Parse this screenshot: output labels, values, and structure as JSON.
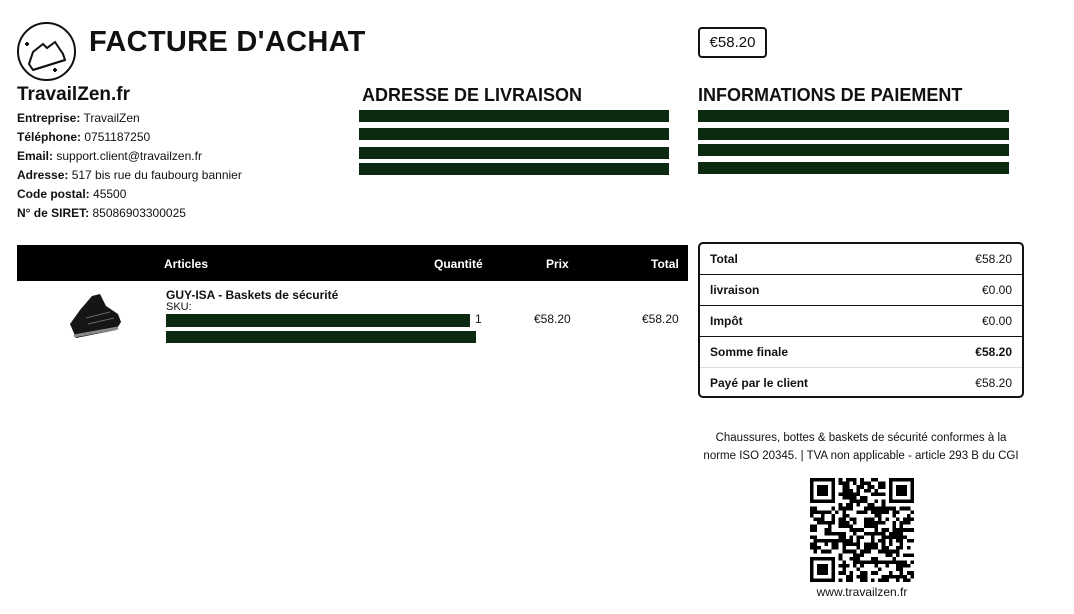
{
  "header": {
    "title": "FACTURE D'ACHAT",
    "amount": "€58.20",
    "logo_icon": "sneaker-icon"
  },
  "company": {
    "name": "TravailZen.fr",
    "fields": [
      {
        "label": "Entreprise:",
        "value": "TravailZen"
      },
      {
        "label": "Téléphone:",
        "value": "0751187250"
      },
      {
        "label": "Email:",
        "value": "support.client@travailzen.fr"
      },
      {
        "label": "Adresse:",
        "value": "517 bis rue du faubourg bannier"
      },
      {
        "label": "Code postal:",
        "value": "45500"
      },
      {
        "label": "N° de SIRET:",
        "value": "85086903300025"
      }
    ]
  },
  "shipping": {
    "heading": "ADRESSE DE LIVRAISON"
  },
  "payment": {
    "heading": "INFORMATIONS DE PAIEMENT"
  },
  "redaction_color": "#0b2a10",
  "table": {
    "headers": {
      "articles": "Articles",
      "quantity": "Quantité",
      "price": "Prix",
      "total": "Total"
    },
    "rows": [
      {
        "name": "GUY-ISA - Baskets de sécurité",
        "sku_label": "SKU:",
        "quantity": "1",
        "price": "€58.20",
        "total": "€58.20"
      }
    ]
  },
  "summary": [
    {
      "label": "Total",
      "value": "€58.20",
      "bold": false
    },
    {
      "label": "livraison",
      "value": "€0.00",
      "bold": false
    },
    {
      "label": "Impôt",
      "value": "€0.00",
      "bold": false
    },
    {
      "label": "Somme finale",
      "value": "€58.20",
      "bold": true
    },
    {
      "label": "Payé par le client",
      "value": "€58.20",
      "bold": false
    }
  ],
  "footer": {
    "note": "Chaussures, bottes & baskets de sécurité conformes à la norme ISO 20345. | TVA non applicable - article 293 B du CGI",
    "website": "www.travailzen.fr"
  }
}
